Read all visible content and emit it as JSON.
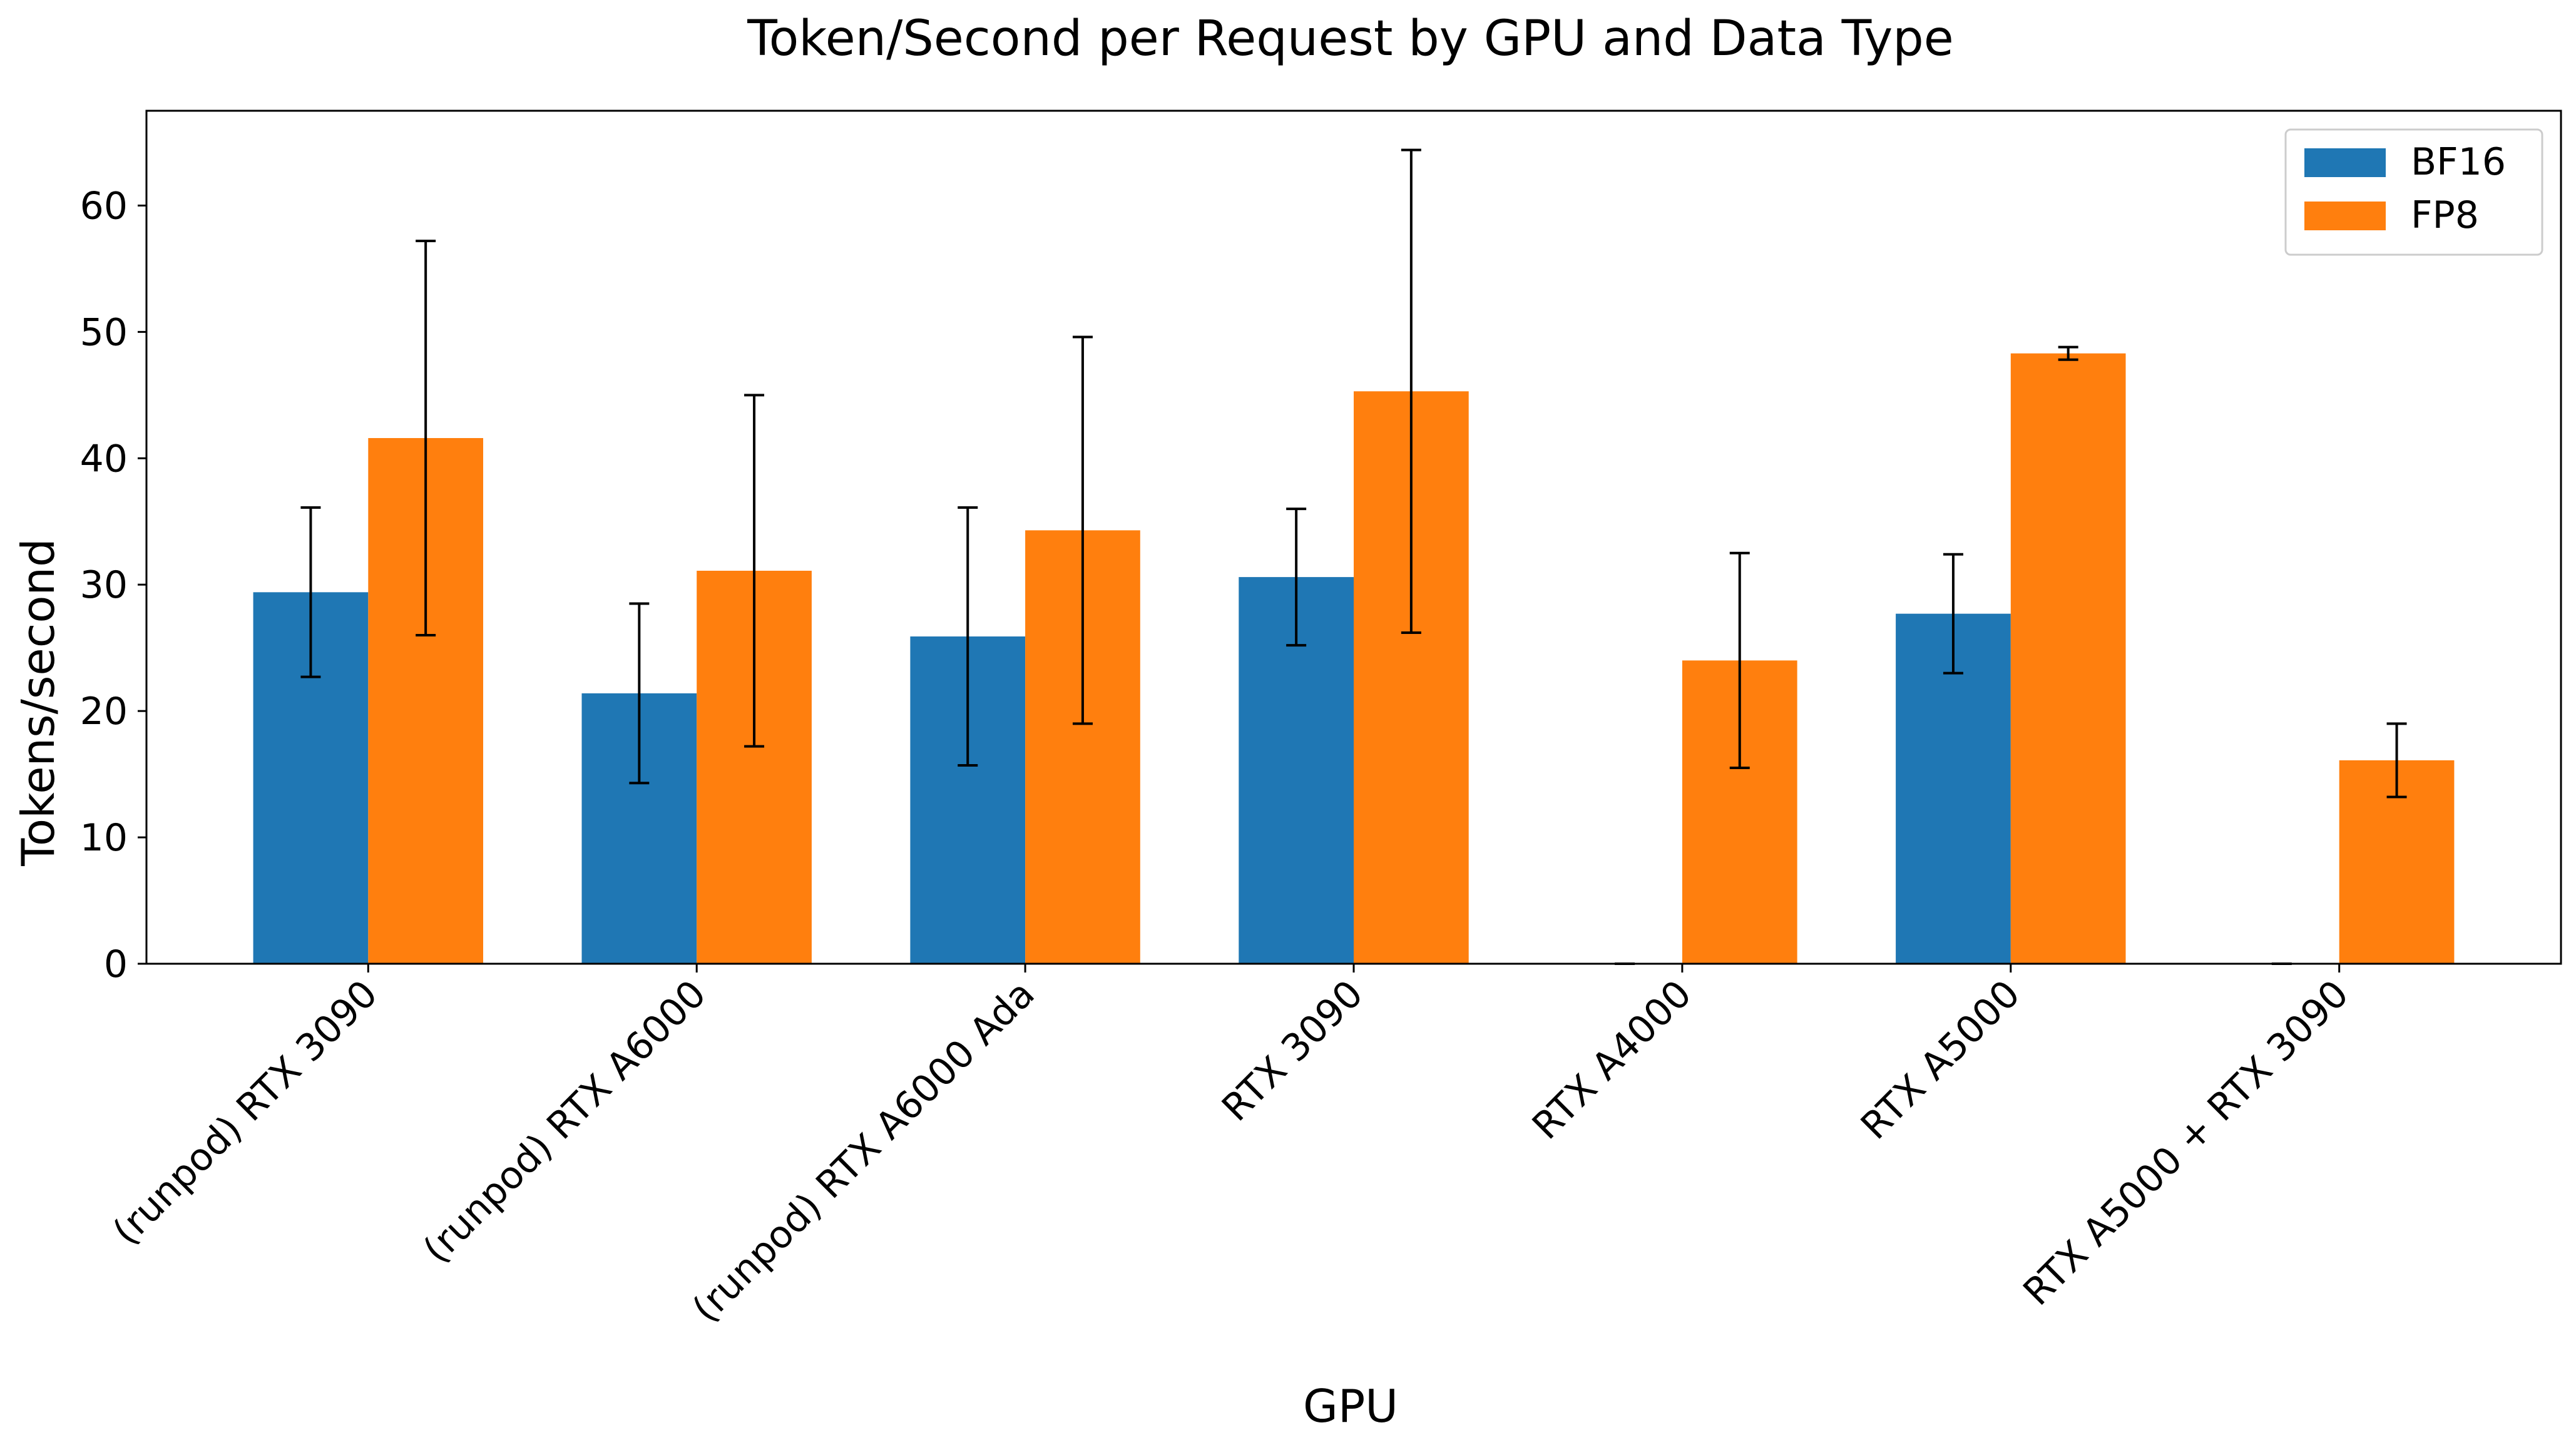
{
  "chart_data": {
    "type": "bar",
    "title": "Token/Second per Request by GPU and Data Type",
    "xlabel": "GPU",
    "ylabel": "Tokens/second",
    "ylim": [
      0,
      67.5
    ],
    "yticks": [
      0,
      10,
      20,
      30,
      40,
      50,
      60
    ],
    "grid": false,
    "legend_position": "top-right",
    "categories": [
      "(runpod) RTX 3090",
      "(runpod) RTX A6000",
      "(runpod) RTX A6000 Ada",
      "RTX 3090",
      "RTX A4000",
      "RTX A5000",
      "RTX A5000 + RTX 3090"
    ],
    "series": [
      {
        "name": "BF16",
        "color": "#1f77b4",
        "values": [
          29.4,
          21.4,
          25.9,
          30.6,
          0,
          27.7,
          0
        ],
        "errors": [
          6.7,
          7.1,
          10.2,
          5.4,
          0,
          4.7,
          0
        ]
      },
      {
        "name": "FP8",
        "color": "#ff7f0e",
        "values": [
          41.6,
          31.1,
          34.3,
          45.3,
          24.0,
          48.3,
          16.1
        ],
        "errors": [
          15.6,
          13.9,
          15.3,
          19.1,
          8.5,
          0.5,
          2.9
        ]
      }
    ]
  }
}
